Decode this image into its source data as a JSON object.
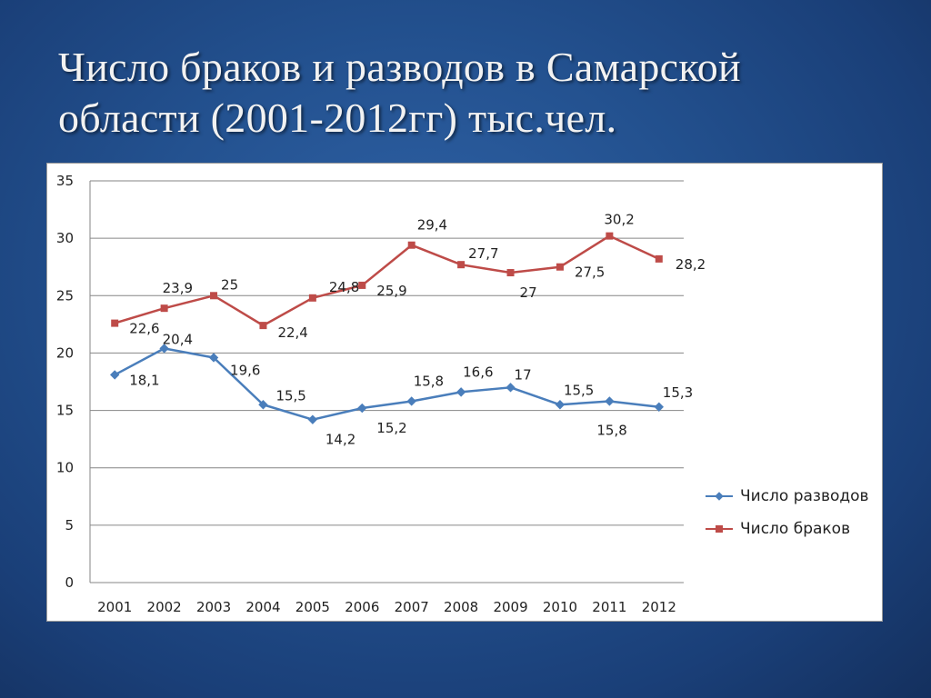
{
  "slide": {
    "title_line1": "Число браков и разводов в Самарской",
    "title_line2": "области (2001-2012гг) тыс.чел."
  },
  "chart_data": {
    "type": "line",
    "title": "",
    "xlabel": "",
    "ylabel": "",
    "categories": [
      "2001",
      "2002",
      "2003",
      "2004",
      "2005",
      "2006",
      "2007",
      "2008",
      "2009",
      "2010",
      "2011",
      "2012"
    ],
    "ylim": [
      0,
      35
    ],
    "yticks": [
      0,
      5,
      10,
      15,
      20,
      25,
      30,
      35
    ],
    "grid": true,
    "legend_position": "right",
    "series": [
      {
        "name": "Число разводов",
        "color": "#4a7ebb",
        "marker": "diamond",
        "values": [
          18.1,
          20.4,
          19.6,
          15.5,
          14.2,
          15.2,
          15.8,
          16.6,
          17,
          15.5,
          15.8,
          15.3
        ],
        "labels": [
          "18,1",
          "20,4",
          "19,6",
          "15,5",
          "14,2",
          "15,2",
          "15,8",
          "16,6",
          "17",
          "15,5",
          "15,8",
          "15,3"
        ]
      },
      {
        "name": "Число браков",
        "color": "#be4b48",
        "marker": "square",
        "values": [
          22.6,
          23.9,
          25,
          22.4,
          24.8,
          25.9,
          29.4,
          27.7,
          27,
          27.5,
          30.2,
          28.2
        ],
        "labels": [
          "22,6",
          "23,9",
          "25",
          "22,4",
          "24,8",
          "25,9",
          "29,4",
          "27,7",
          "27",
          "27,5",
          "30,2",
          "28,2"
        ]
      }
    ]
  }
}
